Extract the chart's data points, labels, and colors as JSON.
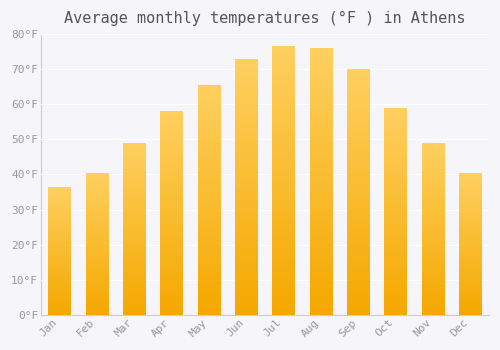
{
  "title": "Average monthly temperatures (°F ) in Athens",
  "months": [
    "Jan",
    "Feb",
    "Mar",
    "Apr",
    "May",
    "Jun",
    "Jul",
    "Aug",
    "Sep",
    "Oct",
    "Nov",
    "Dec"
  ],
  "values": [
    36.5,
    40.5,
    49.0,
    58.0,
    65.5,
    73.0,
    76.5,
    76.0,
    70.0,
    59.0,
    49.0,
    40.5
  ],
  "bar_color_bottom": "#F5A800",
  "bar_color_top": "#FFD060",
  "ylim": [
    0,
    80
  ],
  "yticks": [
    0,
    10,
    20,
    30,
    40,
    50,
    60,
    70,
    80
  ],
  "background_color": "#F5F5FA",
  "plot_bg_color": "#FAFAFA",
  "grid_color": "#FFFFFF",
  "title_fontsize": 11,
  "tick_fontsize": 8,
  "tick_color": "#999999",
  "title_color": "#555555",
  "font_family": "monospace",
  "bar_width": 0.6,
  "spine_color": "#CCCCCC"
}
